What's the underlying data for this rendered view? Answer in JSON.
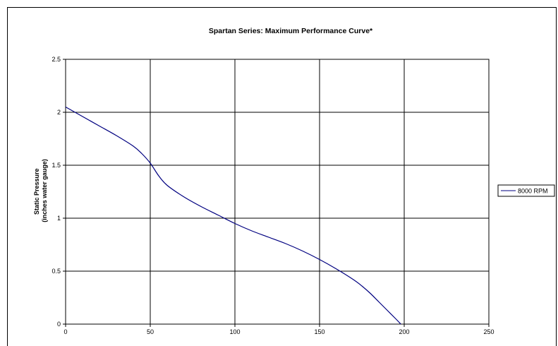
{
  "chart_data": {
    "type": "line",
    "title": "Spartan Series: Maximum Performance Curve*",
    "xlabel": "",
    "ylabel_lines": [
      "Static Pressure",
      "(inches water gauge)"
    ],
    "xlim": [
      0,
      250
    ],
    "ylim": [
      0,
      2.5
    ],
    "x_ticks": [
      0,
      50,
      100,
      150,
      200,
      250
    ],
    "y_ticks": [
      0,
      0.5,
      1,
      1.5,
      2,
      2.5
    ],
    "y_tick_labels": [
      "0",
      "0.5",
      "1",
      "1.5",
      "2",
      "2.5"
    ],
    "grid": true,
    "legend_position": "right",
    "series": [
      {
        "name": "8000 RPM",
        "color": "#000080",
        "x": [
          0,
          10,
          20,
          30,
          40,
          45,
          50,
          55,
          60,
          70,
          80,
          90,
          100,
          110,
          120,
          130,
          140,
          150,
          160,
          170,
          175,
          180,
          185,
          190,
          195,
          198
        ],
        "y": [
          2.05,
          1.96,
          1.87,
          1.78,
          1.68,
          1.61,
          1.52,
          1.4,
          1.31,
          1.2,
          1.11,
          1.03,
          0.95,
          0.88,
          0.82,
          0.76,
          0.69,
          0.61,
          0.52,
          0.42,
          0.36,
          0.29,
          0.21,
          0.13,
          0.05,
          0.0
        ]
      }
    ]
  }
}
